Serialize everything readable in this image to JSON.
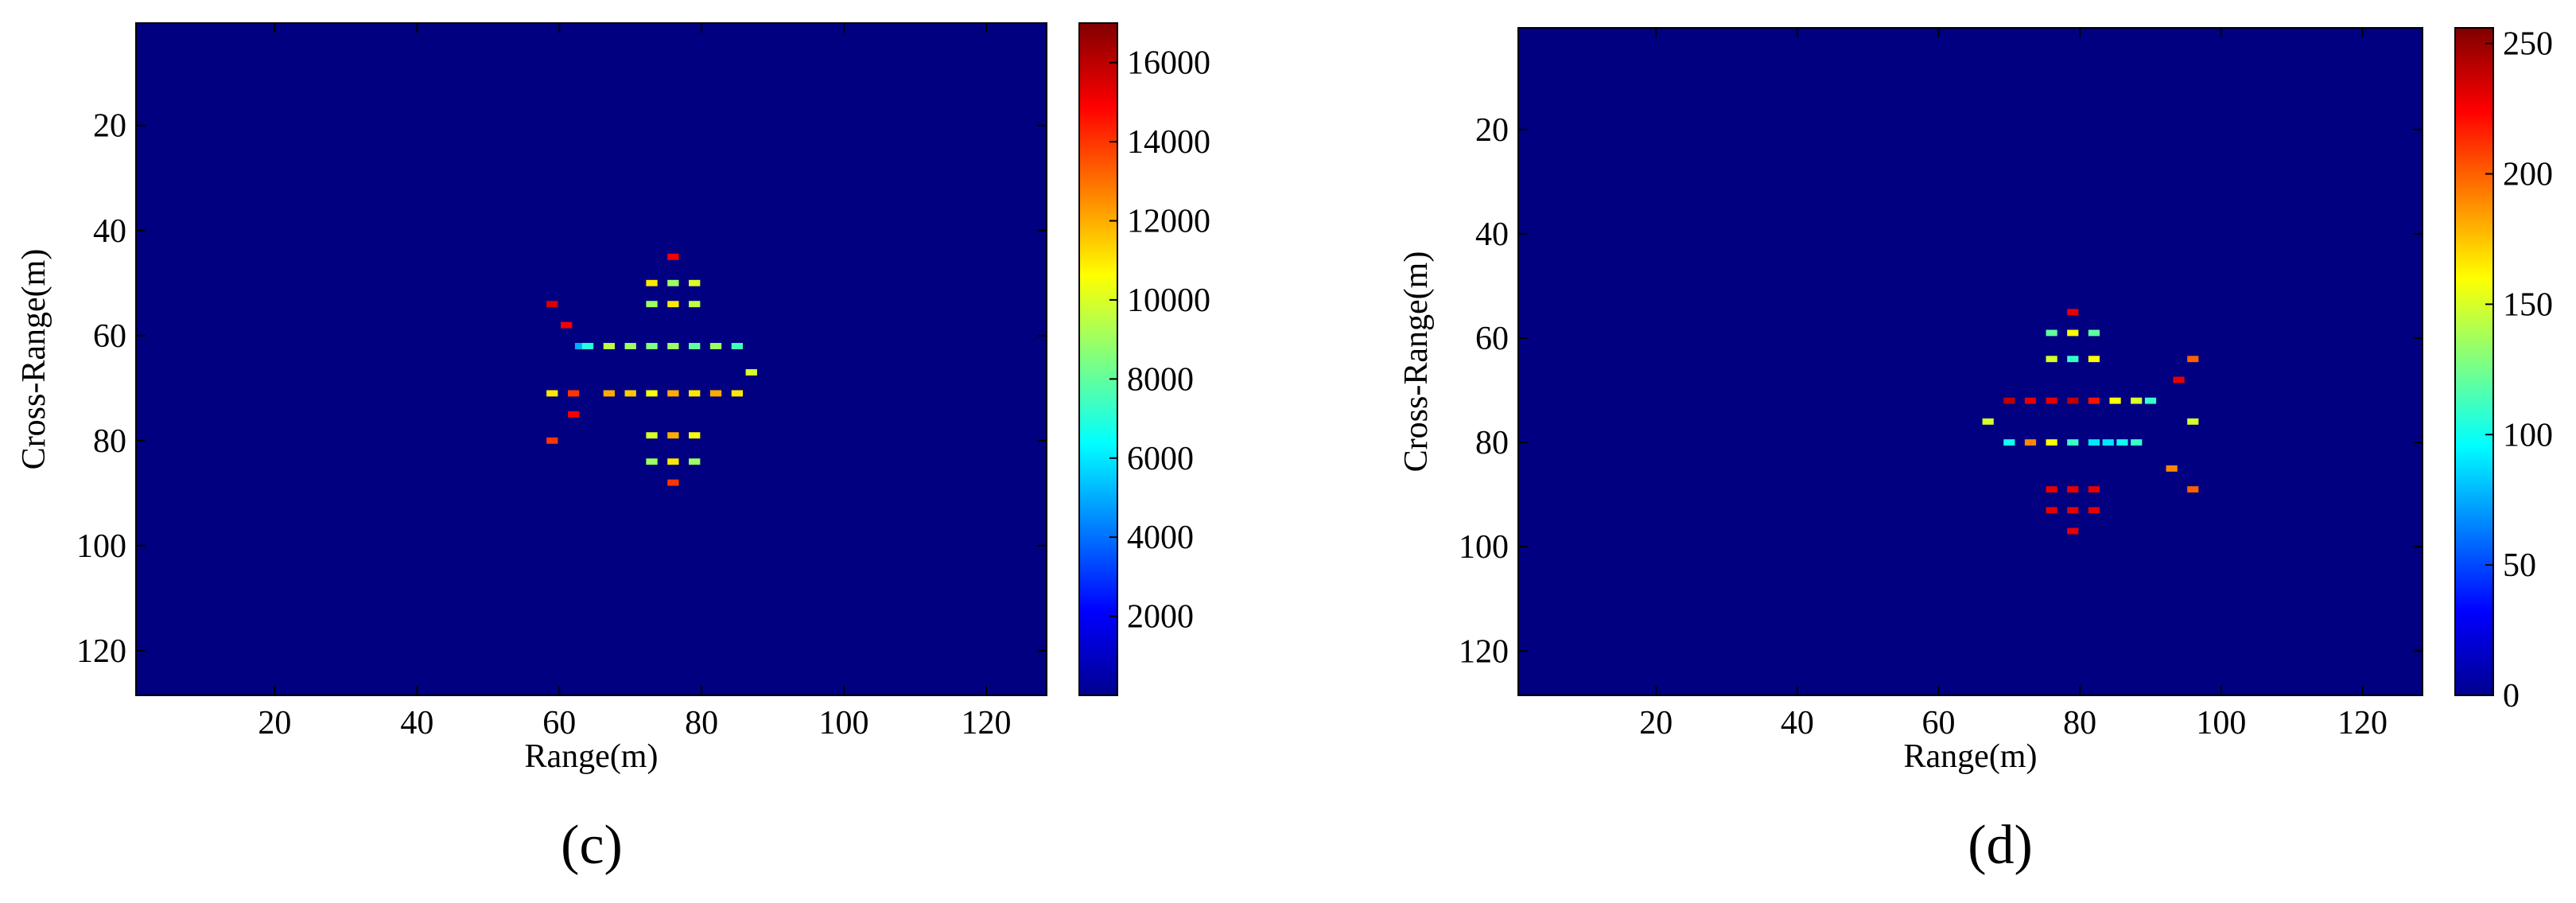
{
  "chart_data": [
    {
      "type": "heatmap",
      "panel_label": "(c)",
      "xlabel": "Range(m)",
      "ylabel": "Cross-Range(m)",
      "xlim": [
        0.5,
        128.5
      ],
      "ylim": [
        0.5,
        128.5
      ],
      "yreverse": true,
      "xticks": [
        20,
        40,
        60,
        80,
        100,
        120
      ],
      "yticks": [
        20,
        40,
        60,
        80,
        100,
        120
      ],
      "colormap": "jet",
      "clim": [
        0,
        17000
      ],
      "cticks": [
        2000,
        4000,
        6000,
        8000,
        10000,
        12000,
        14000,
        16000
      ],
      "x": [
        63,
        64,
        67,
        70,
        73,
        76,
        79,
        82,
        85,
        59,
        62,
        67,
        70,
        73,
        76,
        79,
        82,
        85,
        87,
        76,
        73,
        76,
        79,
        73,
        76,
        79,
        59,
        61,
        62,
        73,
        76,
        79,
        59,
        73,
        76,
        79,
        76
      ],
      "y": [
        62,
        62,
        62,
        62,
        62,
        62,
        62,
        62,
        62,
        71,
        71,
        71,
        71,
        71,
        71,
        71,
        71,
        71,
        67,
        45,
        50,
        50,
        50,
        54,
        54,
        54,
        54,
        58,
        75,
        79,
        79,
        79,
        80,
        84,
        84,
        84,
        88
      ],
      "values": [
        5000,
        7000,
        9500,
        9000,
        8500,
        9000,
        8000,
        9000,
        7500,
        11000,
        14000,
        12000,
        11500,
        10500,
        12000,
        11000,
        12000,
        11000,
        10000,
        15000,
        11000,
        9000,
        10000,
        9000,
        11000,
        9500,
        15500,
        15000,
        15000,
        10000,
        12000,
        10500,
        14000,
        9000,
        11000,
        9000,
        14000
      ]
    },
    {
      "type": "heatmap",
      "panel_label": "(d)",
      "xlabel": "Range(m)",
      "ylabel": "Cross-Range(m)",
      "xlim": [
        0.5,
        128.5
      ],
      "ylim": [
        0.5,
        128.5
      ],
      "yreverse": true,
      "xticks": [
        20,
        40,
        60,
        80,
        100,
        120
      ],
      "yticks": [
        20,
        40,
        60,
        80,
        100,
        120
      ],
      "colormap": "jet",
      "clim": [
        0,
        256
      ],
      "cticks": [
        0,
        50,
        100,
        150,
        200,
        250
      ],
      "x": [
        70,
        73,
        76,
        79,
        82,
        85,
        88,
        90,
        67,
        96,
        70,
        73,
        76,
        79,
        82,
        84,
        86,
        88,
        79,
        76,
        79,
        82,
        76,
        79,
        82,
        96,
        94,
        93,
        96,
        76,
        79,
        82,
        76,
        79,
        82,
        79
      ],
      "y": [
        72,
        72,
        72,
        72,
        72,
        72,
        72,
        72,
        76,
        76,
        80,
        80,
        80,
        80,
        80,
        80,
        80,
        80,
        55,
        59,
        59,
        59,
        64,
        64,
        64,
        64,
        68,
        85,
        89,
        89,
        89,
        89,
        93,
        93,
        93,
        97
      ],
      "values": [
        240,
        230,
        230,
        240,
        220,
        160,
        150,
        110,
        150,
        150,
        100,
        190,
        160,
        110,
        90,
        90,
        100,
        110,
        230,
        120,
        160,
        120,
        150,
        110,
        160,
        200,
        230,
        190,
        200,
        230,
        230,
        230,
        230,
        230,
        230,
        230
      ]
    }
  ]
}
